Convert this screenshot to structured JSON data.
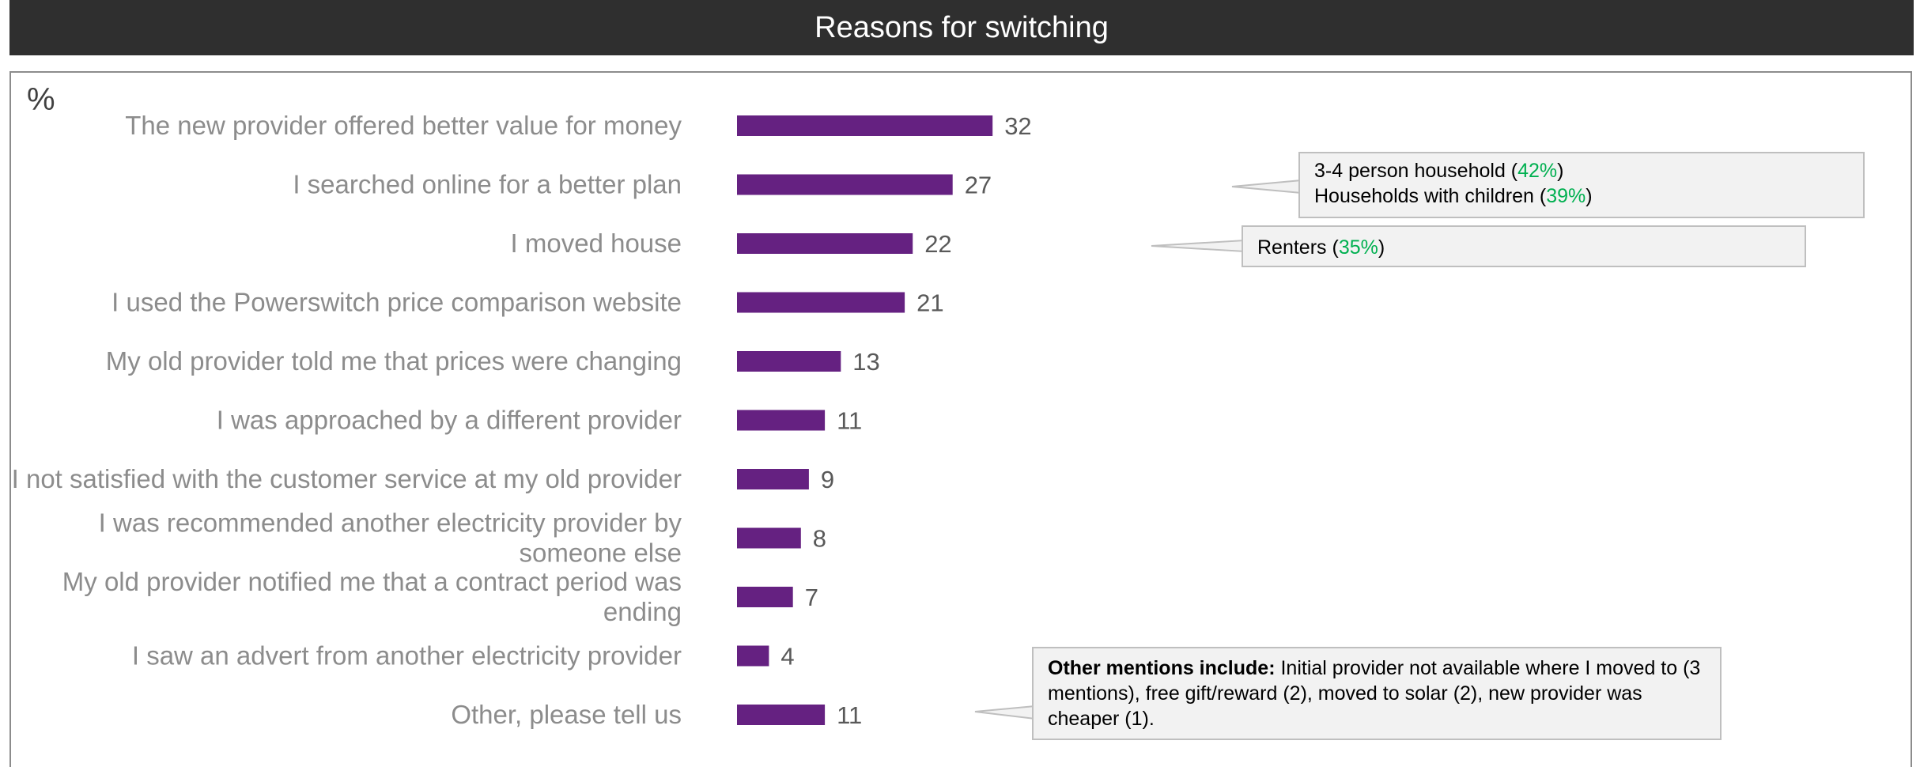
{
  "header": {
    "title": "Reasons for switching"
  },
  "chart_data": {
    "type": "bar",
    "orientation": "horizontal",
    "unit_label": "%",
    "categories": [
      [
        "The new provider offered better value for money"
      ],
      [
        "I searched online for a better plan"
      ],
      [
        "I moved house"
      ],
      [
        "I used the Powerswitch price comparison website"
      ],
      [
        "My old provider told me that prices were changing"
      ],
      [
        "I was approached by a different provider"
      ],
      [
        "I not satisfied with the customer service at my old provider"
      ],
      [
        "I was recommended another electricity provider by",
        "someone else"
      ],
      [
        "My old provider notified me that a contract period was",
        "ending"
      ],
      [
        "I saw an advert from another electricity provider"
      ],
      [
        "Other, please tell us"
      ]
    ],
    "values": [
      32,
      27,
      22,
      21,
      13,
      11,
      9,
      8,
      7,
      4,
      11
    ],
    "bar_color": "#652181",
    "grid": false
  },
  "callouts": [
    {
      "lines": [
        {
          "prefix": "3-4 person household (",
          "highlight": "42%",
          "suffix": ")"
        },
        {
          "prefix": "Households with children (",
          "highlight": "39%",
          "suffix": ")"
        }
      ]
    },
    {
      "lines": [
        {
          "prefix": "Renters (",
          "highlight": "35%",
          "suffix": ")"
        }
      ]
    },
    {
      "bold": "Other mentions include:",
      "text": " Initial provider not available where I moved to (3 mentions), free gift/reward (2), moved to solar (2), new provider was cheaper (1)."
    }
  ],
  "highlight_color": "#00b050"
}
